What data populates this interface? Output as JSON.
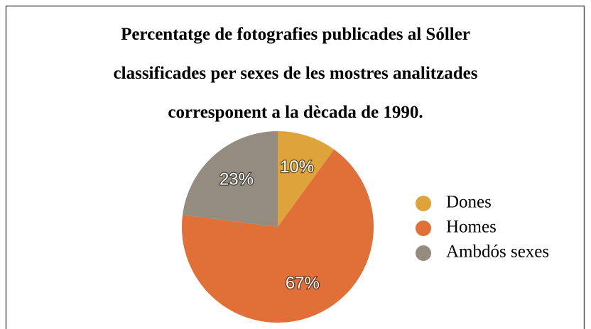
{
  "chart_data": {
    "type": "pie",
    "title": [
      "Percentatge de fotografies publicades al Sóller",
      "classificades per sexes de les mostres analitzades",
      "corresponent a la dècada de 1990."
    ],
    "categories": [
      "Dones",
      "Homes",
      "Ambdós sexes"
    ],
    "values": [
      10,
      67,
      23
    ],
    "value_labels": [
      "10%",
      "67%",
      "23%"
    ],
    "colors": [
      "#dea33a",
      "#e07038",
      "#958c80"
    ],
    "legend": "right"
  }
}
